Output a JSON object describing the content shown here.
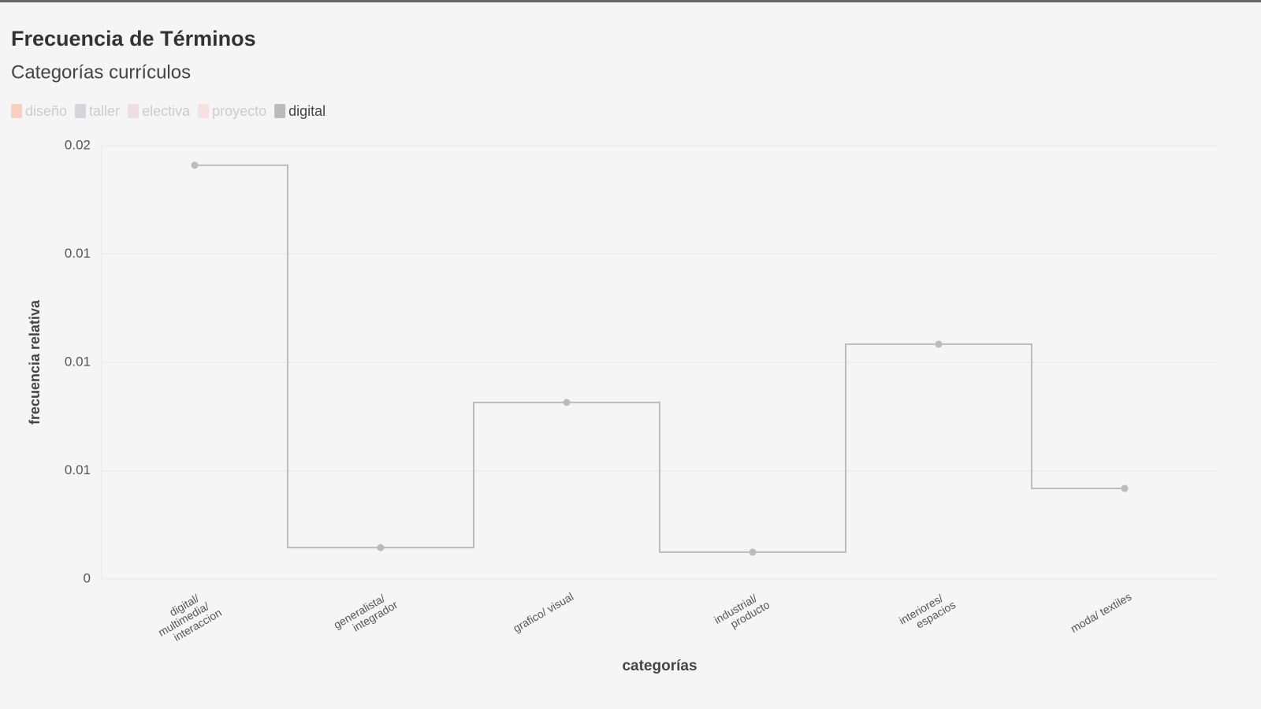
{
  "chart_data": {
    "type": "step",
    "title": "Frecuencia de Términos",
    "subtitle": "Categorías currículos",
    "x_label": "categorías",
    "y_label": "frecuencia relativa",
    "categories": [
      "digital/ multimedia/ interaccion",
      "generalista/ integrador",
      "grafico/ visual",
      "industrial/ producto",
      "interiores/ espacios",
      "moda/ textiles"
    ],
    "series": [
      {
        "name": "diseño",
        "color": "#f9cfc0",
        "hidden": true
      },
      {
        "name": "taller",
        "color": "#d5d5da",
        "hidden": true
      },
      {
        "name": "electiva",
        "color": "#eedde2",
        "hidden": true
      },
      {
        "name": "proyecto",
        "color": "#f8e2df",
        "hidden": true
      },
      {
        "name": "digital",
        "color": "#bbbbbb",
        "values": [
          0.0191,
          0.00145,
          0.00815,
          0.00124,
          0.01084,
          0.00418
        ]
      }
    ],
    "ylim": [
      0,
      0.02
    ],
    "yticks": [
      0,
      {
        "value": 0.005,
        "label": "0.01"
      },
      0.01,
      {
        "value": 0.015,
        "label": "0.01"
      },
      0.02
    ],
    "grid": true
  }
}
